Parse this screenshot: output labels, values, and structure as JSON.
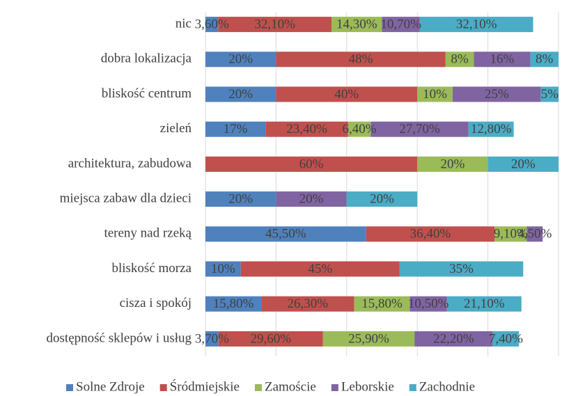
{
  "chart_data": {
    "type": "stacked_barh",
    "categories": [
      "nic",
      "dobra lokalizacja",
      "bliskość centrum",
      "zieleń",
      "architektura, zabudowa",
      "miejsca zabaw dla dzieci",
      "tereny nad rzeką",
      "bliskość morza",
      "cisza i spokój",
      "dostępność sklepów i usług"
    ],
    "series": [
      {
        "name": "Solne Zdroje",
        "color": "#4f81bd",
        "values": [
          3.6,
          20,
          20,
          17,
          null,
          20,
          45.5,
          10,
          15.8,
          3.7
        ],
        "value_labels": [
          "3,60%",
          "20%",
          "20%",
          "17%",
          null,
          "20%",
          "45,50%",
          "10%",
          "15,80%",
          "3,70%"
        ]
      },
      {
        "name": "Śródmiejskie",
        "color": "#c0504d",
        "values": [
          32.1,
          48,
          40,
          23.4,
          60,
          null,
          36.4,
          45,
          26.3,
          29.6
        ],
        "value_labels": [
          "32,10%",
          "48%",
          "40%",
          "23,40%",
          "60%",
          null,
          "36,40%",
          "45%",
          "26,30%",
          "29,60%"
        ]
      },
      {
        "name": "Zamoście",
        "color": "#9bbb59",
        "values": [
          14.3,
          8,
          10,
          6.4,
          20,
          null,
          9.1,
          null,
          15.8,
          25.9
        ],
        "value_labels": [
          "14,30%",
          "8%",
          "10%",
          "6,40%",
          "20%",
          null,
          "9,10%",
          null,
          "15,80%",
          "25,90%"
        ]
      },
      {
        "name": "Leborskie",
        "color": "#8064a2",
        "values": [
          10.7,
          16,
          25,
          27.7,
          null,
          20,
          4.5,
          null,
          10.5,
          22.2
        ],
        "value_labels": [
          "10,70%",
          "16%",
          "25%",
          "27,70%",
          null,
          "20%",
          "4,50%",
          null,
          "10,50%",
          "22,20%"
        ]
      },
      {
        "name": "Zachodnie",
        "color": "#4bacc6",
        "values": [
          32.1,
          8,
          5,
          12.8,
          20,
          20,
          null,
          35,
          21.1,
          7.4
        ],
        "value_labels": [
          "32,10%",
          "8%",
          "5%",
          "12,80%",
          "20%",
          "20%",
          null,
          "35%",
          "21,10%",
          "7,40%"
        ]
      }
    ],
    "xlim": [
      0,
      100
    ],
    "xticks": [
      0,
      20,
      40,
      60,
      80,
      100
    ],
    "grid": true,
    "legend": "bottom"
  }
}
